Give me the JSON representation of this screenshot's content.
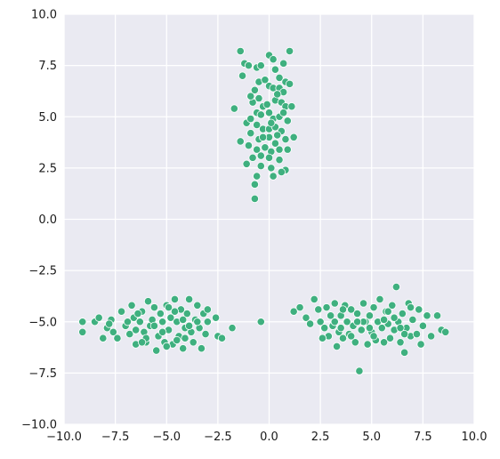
{
  "chart_data": {
    "type": "scatter",
    "title": "",
    "xlabel": "",
    "ylabel": "",
    "xlim": [
      -10,
      10
    ],
    "ylim": [
      -10,
      10
    ],
    "xticks": [
      -10.0,
      -7.5,
      -5.0,
      -2.5,
      0.0,
      2.5,
      5.0,
      7.5,
      10.0
    ],
    "yticks": [
      -10.0,
      -7.5,
      -5.0,
      -2.5,
      0.0,
      2.5,
      5.0,
      7.5,
      10.0
    ],
    "xtick_labels": [
      "−10.0",
      "−7.5",
      "−5.0",
      "−2.5",
      "0.0",
      "2.5",
      "5.0",
      "7.5",
      "10.0"
    ],
    "ytick_labels": [
      "−10.0",
      "−7.5",
      "−5.0",
      "−2.5",
      "0.0",
      "2.5",
      "5.0",
      "7.5",
      "10.0"
    ],
    "grid": true,
    "legend": false,
    "colors": {
      "background": "#eaeaf2",
      "grid": "#ffffff",
      "point": "#3fb07f",
      "point_edge": "#ffffff"
    },
    "series": [
      {
        "points": [
          [
            -1.4,
            8.2
          ],
          [
            -1.2,
            7.6
          ],
          [
            -1.0,
            7.5
          ],
          [
            -1.3,
            7.0
          ],
          [
            0.0,
            8.0
          ],
          [
            0.2,
            7.8
          ],
          [
            0.7,
            7.6
          ],
          [
            1.0,
            8.2
          ],
          [
            -0.6,
            7.4
          ],
          [
            -0.4,
            7.5
          ],
          [
            0.3,
            7.3
          ],
          [
            0.5,
            6.9
          ],
          [
            0.8,
            6.7
          ],
          [
            1.0,
            6.6
          ],
          [
            -0.5,
            6.7
          ],
          [
            -0.2,
            6.8
          ],
          [
            0.0,
            6.5
          ],
          [
            0.2,
            6.4
          ],
          [
            0.5,
            6.4
          ],
          [
            0.7,
            6.2
          ],
          [
            -0.7,
            6.3
          ],
          [
            -1.7,
            5.4
          ],
          [
            -1.1,
            4.7
          ],
          [
            -0.5,
            5.9
          ],
          [
            0.3,
            5.8
          ],
          [
            0.6,
            5.7
          ],
          [
            0.8,
            5.5
          ],
          [
            -0.6,
            5.2
          ],
          [
            -0.3,
            5.5
          ],
          [
            0.0,
            5.2
          ],
          [
            1.1,
            5.5
          ],
          [
            0.2,
            4.9
          ],
          [
            0.5,
            5.0
          ],
          [
            0.9,
            4.8
          ],
          [
            -0.9,
            4.9
          ],
          [
            -0.6,
            4.6
          ],
          [
            -0.3,
            4.4
          ],
          [
            0.0,
            4.4
          ],
          [
            0.3,
            4.5
          ],
          [
            0.6,
            4.3
          ],
          [
            -0.9,
            4.2
          ],
          [
            -0.5,
            3.9
          ],
          [
            0.0,
            4.0
          ],
          [
            0.4,
            4.1
          ],
          [
            0.8,
            3.9
          ],
          [
            1.2,
            4.0
          ],
          [
            -1.4,
            3.8
          ],
          [
            -1.0,
            3.6
          ],
          [
            -0.6,
            3.4
          ],
          [
            -0.2,
            3.5
          ],
          [
            0.1,
            3.3
          ],
          [
            0.5,
            3.4
          ],
          [
            0.9,
            3.4
          ],
          [
            -0.8,
            3.0
          ],
          [
            -0.4,
            3.1
          ],
          [
            0.0,
            3.0
          ],
          [
            0.5,
            2.9
          ],
          [
            0.8,
            2.4
          ],
          [
            -1.1,
            2.7
          ],
          [
            -0.4,
            2.6
          ],
          [
            0.1,
            2.5
          ],
          [
            0.6,
            2.3
          ],
          [
            -0.6,
            2.1
          ],
          [
            0.2,
            2.1
          ],
          [
            -0.7,
            1.7
          ],
          [
            -0.7,
            1.0
          ],
          [
            -0.4,
            5.1
          ],
          [
            -0.1,
            5.6
          ],
          [
            0.4,
            6.1
          ],
          [
            -0.8,
            5.7
          ],
          [
            0.1,
            4.7
          ],
          [
            -0.3,
            4.0
          ],
          [
            0.7,
            5.2
          ],
          [
            -0.9,
            6.0
          ],
          [
            0.3,
            3.7
          ],
          [
            -9.1,
            -5.0
          ],
          [
            -9.1,
            -5.5
          ],
          [
            -8.5,
            -5.0
          ],
          [
            -8.3,
            -4.8
          ],
          [
            -8.1,
            -5.8
          ],
          [
            -7.9,
            -5.3
          ],
          [
            -7.7,
            -4.9
          ],
          [
            -7.6,
            -5.5
          ],
          [
            -7.4,
            -5.8
          ],
          [
            -7.2,
            -4.5
          ],
          [
            -7.0,
            -5.2
          ],
          [
            -6.8,
            -5.6
          ],
          [
            -6.7,
            -4.2
          ],
          [
            -6.6,
            -4.8
          ],
          [
            -6.5,
            -6.1
          ],
          [
            -6.3,
            -5.0
          ],
          [
            -6.2,
            -4.5
          ],
          [
            -6.1,
            -5.5
          ],
          [
            -6.0,
            -6.0
          ],
          [
            -5.9,
            -4.0
          ],
          [
            -5.8,
            -5.2
          ],
          [
            -5.6,
            -4.3
          ],
          [
            -5.5,
            -6.4
          ],
          [
            -5.4,
            -5.7
          ],
          [
            -5.3,
            -4.6
          ],
          [
            -5.2,
            -5.0
          ],
          [
            -5.1,
            -6.0
          ],
          [
            -5.0,
            -4.2
          ],
          [
            -4.9,
            -5.4
          ],
          [
            -4.8,
            -4.8
          ],
          [
            -4.7,
            -6.1
          ],
          [
            -4.6,
            -3.9
          ],
          [
            -4.5,
            -5.0
          ],
          [
            -4.4,
            -5.7
          ],
          [
            -4.3,
            -4.4
          ],
          [
            -4.2,
            -6.3
          ],
          [
            -4.1,
            -5.3
          ],
          [
            -4.0,
            -4.6
          ],
          [
            -3.9,
            -3.9
          ],
          [
            -3.8,
            -5.5
          ],
          [
            -3.7,
            -6.0
          ],
          [
            -3.6,
            -4.9
          ],
          [
            -3.5,
            -4.2
          ],
          [
            -3.4,
            -5.3
          ],
          [
            -3.3,
            -6.3
          ],
          [
            -3.2,
            -4.6
          ],
          [
            -3.1,
            -5.6
          ],
          [
            -3.0,
            -5.0
          ],
          [
            -2.6,
            -4.8
          ],
          [
            -2.5,
            -5.7
          ],
          [
            -2.3,
            -5.8
          ],
          [
            -1.8,
            -5.3
          ],
          [
            -6.9,
            -5.0
          ],
          [
            -6.4,
            -4.6
          ],
          [
            -6.0,
            -5.8
          ],
          [
            -5.7,
            -4.9
          ],
          [
            -5.2,
            -5.5
          ],
          [
            -4.9,
            -4.3
          ],
          [
            -4.5,
            -5.9
          ],
          [
            -4.2,
            -4.9
          ],
          [
            -3.9,
            -5.2
          ],
          [
            -3.5,
            -5.0
          ],
          [
            -5.6,
            -5.2
          ],
          [
            -6.5,
            -5.4
          ],
          [
            -4.1,
            -5.8
          ],
          [
            -7.8,
            -5.1
          ],
          [
            -3.0,
            -4.4
          ],
          [
            -5.0,
            -6.2
          ],
          [
            -6.2,
            -6.0
          ],
          [
            -4.6,
            -4.5
          ],
          [
            -0.4,
            -5.0
          ],
          [
            1.2,
            -4.5
          ],
          [
            1.5,
            -4.3
          ],
          [
            1.8,
            -4.8
          ],
          [
            2.0,
            -5.1
          ],
          [
            2.2,
            -3.9
          ],
          [
            2.4,
            -4.4
          ],
          [
            2.5,
            -5.0
          ],
          [
            2.7,
            -5.3
          ],
          [
            2.8,
            -4.3
          ],
          [
            2.9,
            -5.7
          ],
          [
            3.0,
            -4.7
          ],
          [
            3.1,
            -5.2
          ],
          [
            3.2,
            -4.1
          ],
          [
            3.3,
            -6.2
          ],
          [
            3.4,
            -5.5
          ],
          [
            3.5,
            -4.7
          ],
          [
            3.6,
            -5.8
          ],
          [
            3.7,
            -4.2
          ],
          [
            3.8,
            -5.0
          ],
          [
            3.9,
            -5.6
          ],
          [
            4.0,
            -4.4
          ],
          [
            4.1,
            -5.2
          ],
          [
            4.2,
            -6.0
          ],
          [
            4.3,
            -4.6
          ],
          [
            4.4,
            -7.4
          ],
          [
            4.5,
            -5.4
          ],
          [
            4.6,
            -4.1
          ],
          [
            4.7,
            -5.0
          ],
          [
            4.8,
            -6.1
          ],
          [
            4.9,
            -4.7
          ],
          [
            5.0,
            -5.5
          ],
          [
            5.1,
            -4.3
          ],
          [
            5.2,
            -5.9
          ],
          [
            5.3,
            -5.0
          ],
          [
            5.4,
            -3.9
          ],
          [
            5.5,
            -5.3
          ],
          [
            5.6,
            -6.0
          ],
          [
            5.7,
            -4.5
          ],
          [
            5.8,
            -5.1
          ],
          [
            5.9,
            -5.8
          ],
          [
            6.0,
            -4.2
          ],
          [
            6.1,
            -5.4
          ],
          [
            6.2,
            -3.3
          ],
          [
            6.3,
            -5.0
          ],
          [
            6.4,
            -6.0
          ],
          [
            6.5,
            -4.6
          ],
          [
            6.6,
            -6.5
          ],
          [
            6.7,
            -5.3
          ],
          [
            6.8,
            -4.1
          ],
          [
            6.9,
            -5.7
          ],
          [
            7.0,
            -4.9
          ],
          [
            7.2,
            -5.6
          ],
          [
            7.3,
            -4.4
          ],
          [
            7.5,
            -5.2
          ],
          [
            7.7,
            -4.7
          ],
          [
            7.9,
            -5.7
          ],
          [
            8.2,
            -4.7
          ],
          [
            8.4,
            -5.4
          ],
          [
            8.6,
            -5.5
          ],
          [
            7.4,
            -6.1
          ],
          [
            3.5,
            -5.3
          ],
          [
            4.0,
            -5.7
          ],
          [
            4.6,
            -5.0
          ],
          [
            5.1,
            -5.7
          ],
          [
            5.6,
            -4.9
          ],
          [
            6.1,
            -4.8
          ],
          [
            6.6,
            -5.6
          ],
          [
            3.2,
            -5.0
          ],
          [
            4.3,
            -5.0
          ],
          [
            5.8,
            -4.5
          ],
          [
            2.6,
            -5.8
          ],
          [
            6.9,
            -4.3
          ],
          [
            4.9,
            -5.3
          ],
          [
            3.6,
            -4.4
          ],
          [
            6.4,
            -5.3
          ]
        ]
      }
    ]
  }
}
